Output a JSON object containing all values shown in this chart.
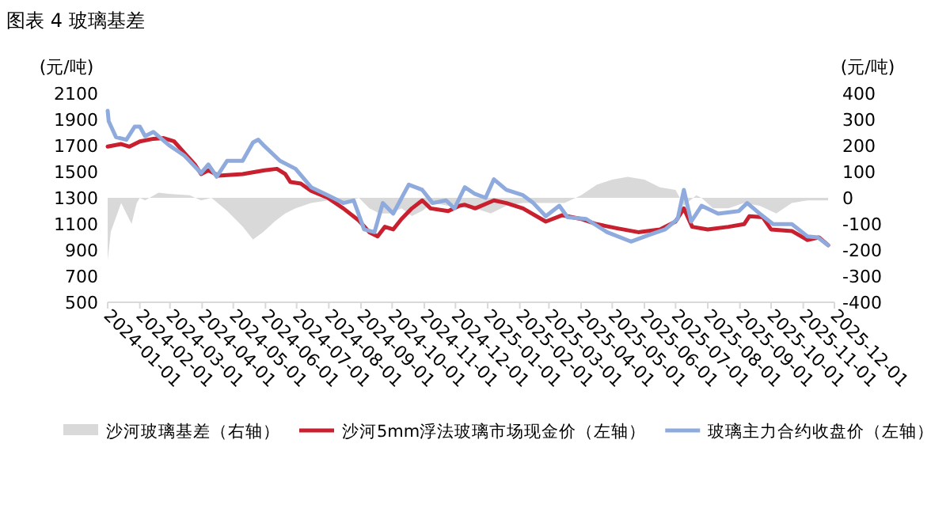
{
  "chart_data": {
    "type": "line",
    "title": "图表 4 玻璃基差",
    "ylabel": "(元/吨)",
    "y2label": "(元/吨)",
    "xlim": [
      "2024-01-01",
      "2025-12-01"
    ],
    "xticks": [
      "2024-01-01",
      "2024-02-01",
      "2024-03-01",
      "2024-04-01",
      "2024-05-01",
      "2024-06-01",
      "2024-07-01",
      "2024-08-01",
      "2024-09-01",
      "2024-10-01",
      "2024-11-01",
      "2024-12-01",
      "2025-01-01",
      "2025-02-01",
      "2025-03-01",
      "2025-04-01",
      "2025-05-01",
      "2025-06-01",
      "2025-07-01",
      "2025-08-01",
      "2025-09-01",
      "2025-10-01",
      "2025-11-01",
      "2025-12-01"
    ],
    "ylim": [
      500,
      2100
    ],
    "yticks": [
      500,
      700,
      900,
      1100,
      1300,
      1500,
      1700,
      1900,
      2100
    ],
    "y2lim": [
      -400,
      400
    ],
    "y2ticks": [
      -400,
      -300,
      -200,
      -100,
      0,
      100,
      200,
      300,
      400
    ],
    "legend": "bottom",
    "grid": false,
    "series": [
      {
        "name": "沙河玻璃基差（右轴）",
        "type": "area",
        "axis": "y2",
        "color": "#d9d9d9",
        "x": [
          "2024-01-01",
          "2024-01-04",
          "2024-01-14",
          "2024-01-24",
          "2024-01-29",
          "2024-02-01",
          "2024-02-06",
          "2024-02-19",
          "2024-02-29",
          "2024-03-20",
          "2024-03-31",
          "2024-04-10",
          "2024-04-25",
          "2024-05-10",
          "2024-05-20",
          "2024-05-30",
          "2024-06-10",
          "2024-06-20",
          "2024-06-30",
          "2024-07-15",
          "2024-07-31",
          "2024-08-15",
          "2024-08-30",
          "2024-09-09",
          "2024-09-19",
          "2024-09-29",
          "2024-10-10",
          "2024-10-20",
          "2024-10-30",
          "2024-11-09",
          "2024-11-24",
          "2024-12-05",
          "2024-12-10",
          "2024-12-20",
          "2025-01-04",
          "2025-01-19",
          "2025-02-04",
          "2025-02-24",
          "2025-03-16",
          "2025-04-01",
          "2025-04-16",
          "2025-05-01",
          "2025-05-16",
          "2025-06-01",
          "2025-06-16",
          "2025-07-01",
          "2025-07-09",
          "2025-07-21",
          "2025-07-26",
          "2025-08-06",
          "2025-08-21",
          "2025-09-05",
          "2025-09-20",
          "2025-10-06",
          "2025-10-21",
          "2025-11-05",
          "2025-11-15",
          "2025-11-25"
        ],
        "values": [
          -240,
          -130,
          -20,
          -100,
          -20,
          0,
          -10,
          20,
          15,
          10,
          -10,
          0,
          -50,
          -110,
          -160,
          -130,
          -90,
          -60,
          -40,
          -20,
          -10,
          -20,
          0,
          -40,
          -60,
          -60,
          -40,
          -70,
          -50,
          -20,
          -30,
          -20,
          -40,
          -40,
          -60,
          -30,
          -20,
          -20,
          -20,
          10,
          50,
          70,
          80,
          70,
          40,
          30,
          -30,
          10,
          0,
          -40,
          -40,
          -20,
          -30,
          -60,
          -20,
          -10,
          -10,
          -10
        ]
      },
      {
        "name": "沙河5mm浮法玻璃市场现金价（左轴）",
        "color": "#c8202f",
        "x": [
          "2024-01-01",
          "2024-01-14",
          "2024-01-22",
          "2024-02-01",
          "2024-02-14",
          "2024-02-24",
          "2024-03-05",
          "2024-03-15",
          "2024-03-25",
          "2024-03-31",
          "2024-04-07",
          "2024-04-17",
          "2024-05-10",
          "2024-05-31",
          "2024-06-12",
          "2024-06-20",
          "2024-06-25",
          "2024-07-05",
          "2024-07-15",
          "2024-07-31",
          "2024-08-15",
          "2024-08-30",
          "2024-09-09",
          "2024-09-17",
          "2024-09-24",
          "2024-10-02",
          "2024-10-10",
          "2024-10-20",
          "2024-10-30",
          "2024-11-07",
          "2024-11-24",
          "2024-12-05",
          "2024-12-10",
          "2024-12-20",
          "2025-01-07",
          "2025-01-19",
          "2025-02-04",
          "2025-02-26",
          "2025-03-14",
          "2025-04-01",
          "2025-04-16",
          "2025-05-06",
          "2025-05-26",
          "2025-06-16",
          "2025-07-01",
          "2025-07-09",
          "2025-07-17",
          "2025-08-01",
          "2025-08-21",
          "2025-09-05",
          "2025-09-10",
          "2025-09-23",
          "2025-10-01",
          "2025-10-21",
          "2025-11-05",
          "2025-11-16",
          "2025-11-25"
        ],
        "values": [
          1692,
          1712,
          1692,
          1732,
          1752,
          1757,
          1732,
          1643,
          1555,
          1482,
          1510,
          1470,
          1482,
          1510,
          1522,
          1482,
          1421,
          1409,
          1353,
          1300,
          1219,
          1126,
          1037,
          1005,
          1078,
          1058,
          1138,
          1219,
          1280,
          1219,
          1199,
          1239,
          1247,
          1219,
          1280,
          1260,
          1219,
          1118,
          1167,
          1138,
          1098,
          1066,
          1037,
          1058,
          1118,
          1219,
          1078,
          1058,
          1078,
          1098,
          1159,
          1151,
          1058,
          1046,
          977,
          997,
          937
        ]
      },
      {
        "name": "玻璃主力合约收盘价（左轴）",
        "color": "#8faadc",
        "x": [
          "2024-01-01",
          "2024-01-02",
          "2024-01-09",
          "2024-01-19",
          "2024-01-27",
          "2024-02-01",
          "2024-02-06",
          "2024-02-14",
          "2024-02-29",
          "2024-03-15",
          "2024-03-31",
          "2024-04-07",
          "2024-04-15",
          "2024-04-25",
          "2024-05-10",
          "2024-05-20",
          "2024-05-25",
          "2024-05-30",
          "2024-06-15",
          "2024-06-30",
          "2024-07-15",
          "2024-07-31",
          "2024-08-15",
          "2024-08-25",
          "2024-09-04",
          "2024-09-14",
          "2024-09-22",
          "2024-10-02",
          "2024-10-17",
          "2024-10-30",
          "2024-11-09",
          "2024-11-22",
          "2024-11-30",
          "2024-12-10",
          "2024-12-20",
          "2024-12-30",
          "2025-01-07",
          "2025-01-19",
          "2025-02-04",
          "2025-02-14",
          "2025-02-26",
          "2025-03-11",
          "2025-03-19",
          "2025-04-06",
          "2025-04-26",
          "2025-05-19",
          "2025-06-06",
          "2025-06-21",
          "2025-07-03",
          "2025-07-09",
          "2025-07-16",
          "2025-07-26",
          "2025-08-11",
          "2025-08-31",
          "2025-09-08",
          "2025-09-20",
          "2025-10-03",
          "2025-10-21",
          "2025-11-05",
          "2025-11-15",
          "2025-11-25"
        ],
        "values": [
          1967,
          1886,
          1765,
          1745,
          1845,
          1845,
          1773,
          1805,
          1704,
          1623,
          1490,
          1555,
          1462,
          1583,
          1583,
          1724,
          1745,
          1704,
          1583,
          1522,
          1381,
          1320,
          1260,
          1280,
          1058,
          1037,
          1260,
          1179,
          1401,
          1361,
          1260,
          1280,
          1219,
          1381,
          1329,
          1300,
          1442,
          1361,
          1320,
          1260,
          1159,
          1239,
          1151,
          1138,
          1037,
          965,
          1017,
          1058,
          1138,
          1361,
          1118,
          1239,
          1179,
          1199,
          1260,
          1179,
          1098,
          1098,
          1005,
          997,
          937
        ]
      }
    ]
  }
}
